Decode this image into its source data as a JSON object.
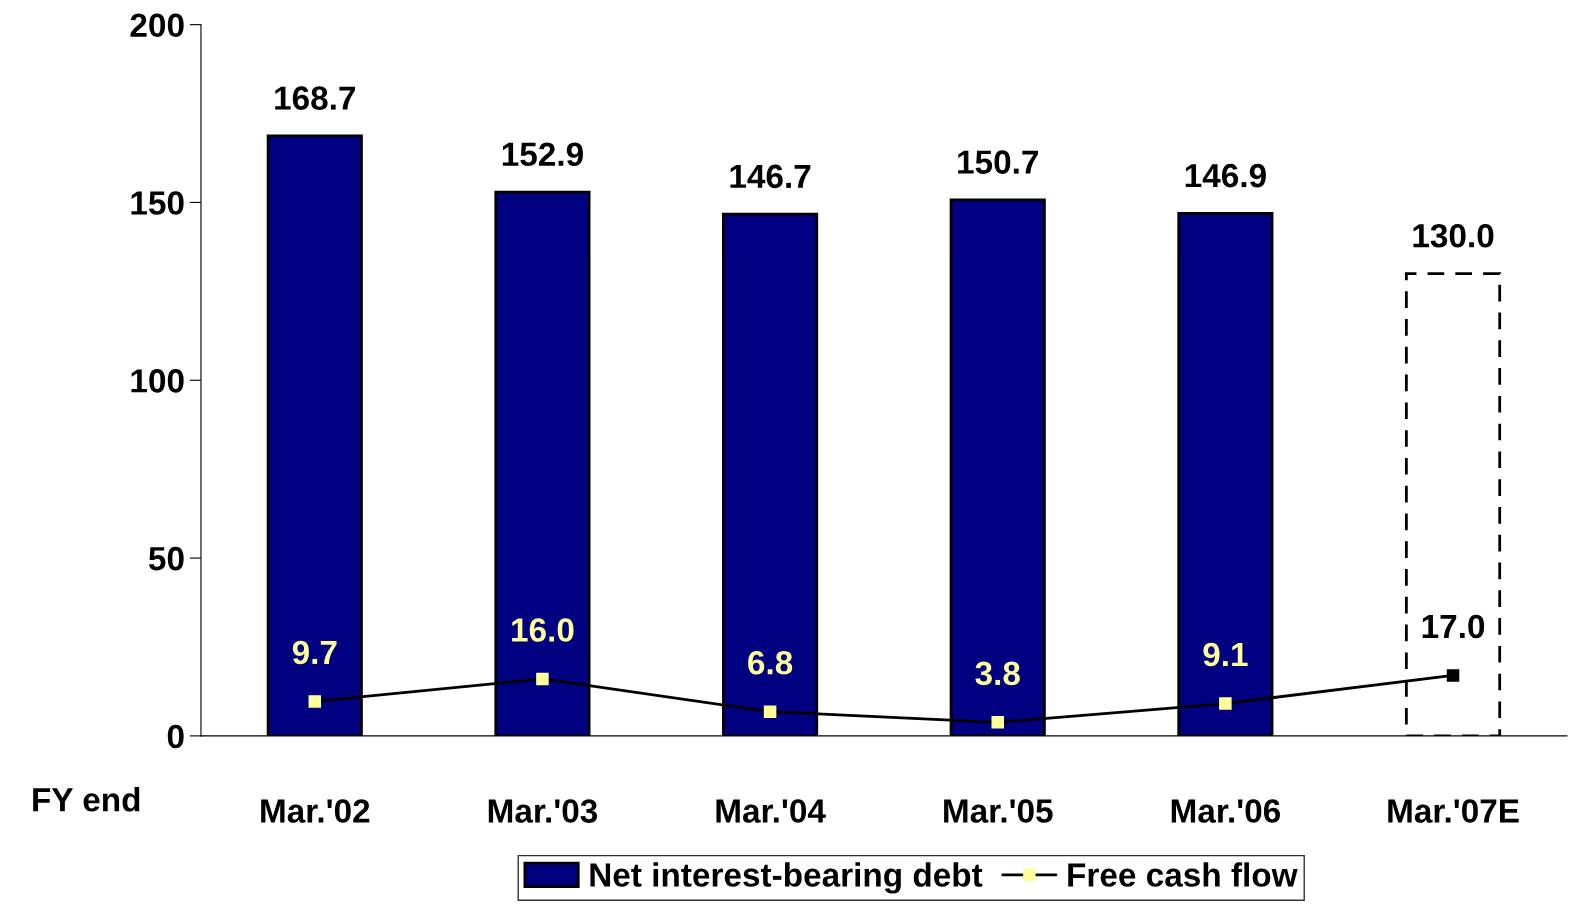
{
  "chart_data": {
    "type": "bar",
    "xlabel": "FY end",
    "categories": [
      "Mar.'02",
      "Mar.'03",
      "Mar.'04",
      "Mar.'05",
      "Mar.'06",
      "Mar.'07E"
    ],
    "series": [
      {
        "name": "Net interest-bearing debt",
        "color": "#000080",
        "values": [
          168.7,
          152.9,
          146.7,
          150.7,
          146.9,
          null
        ],
        "value_labels": [
          "168.7",
          "152.9",
          "146.7",
          "150.7",
          "146.9",
          null
        ]
      },
      {
        "color": "#ffffff",
        "line_style": "dashed",
        "values": [
          null,
          null,
          null,
          null,
          null,
          130.0
        ],
        "value_labels": [
          null,
          null,
          null,
          null,
          null,
          "130.0"
        ]
      },
      {
        "name": "Free cash flow",
        "type": "line",
        "color": "#000000",
        "marker": "square",
        "colors": [
          "#ffff99",
          "#ffff99",
          "#ffff99",
          "#ffff99",
          "#ffff99",
          "#000000"
        ],
        "values": [
          9.7,
          16.0,
          6.8,
          3.8,
          9.1,
          17.0
        ],
        "value_labels": [
          "9.7",
          "16.0",
          "6.8",
          "3.8",
          "9.1",
          "17.0"
        ]
      }
    ],
    "ylim": [
      0,
      200
    ],
    "yticks": [
      0,
      50,
      100,
      150,
      200
    ],
    "grid": false,
    "legend": "bottom"
  }
}
